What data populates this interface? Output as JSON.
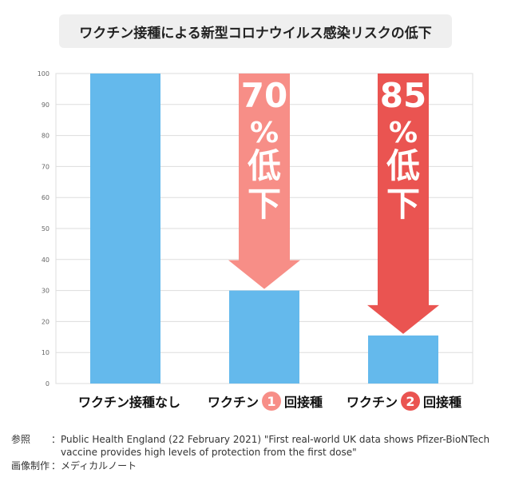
{
  "chart_data": {
    "type": "bar",
    "title": "ワクチン接種による新型コロナウイルス感染リスクの低下",
    "categories": [
      "ワクチン接種なし",
      "ワクチン1回接種",
      "ワクチン2回接種"
    ],
    "category_parts": [
      {
        "pre": "ワクチン接種なし",
        "num": "",
        "post": ""
      },
      {
        "pre": "ワクチン",
        "num": "1",
        "post": "回接種"
      },
      {
        "pre": "ワクチン",
        "num": "2",
        "post": "回接種"
      }
    ],
    "values": [
      100,
      30,
      15.5
    ],
    "ylim": [
      0,
      100
    ],
    "yticks": [
      0,
      10,
      20,
      30,
      40,
      50,
      60,
      70,
      80,
      90,
      100
    ],
    "grid": true,
    "annotations": [
      {
        "category_index": 1,
        "lines": [
          "70",
          "%",
          "低",
          "下"
        ],
        "from": 100,
        "to": 30,
        "color": "#f78e87"
      },
      {
        "category_index": 2,
        "lines": [
          "85",
          "%",
          "低",
          "下"
        ],
        "from": 100,
        "to": 15.5,
        "color": "#ea5451"
      }
    ]
  },
  "colors": {
    "bar": "#64b9ec",
    "circle_1": "#f78e87",
    "circle_2": "#ea5451",
    "grid": "#dddddd",
    "title_bg": "#efefef"
  },
  "references": {
    "source_key": "参照",
    "source_colon": "：",
    "source_line1": "Public Health England (22 February 2021) \"First real-world UK data shows Pfizer-BioNTech",
    "source_line2": "vaccine provides high levels of protection from the first dose\"",
    "credit_key": "画像制作",
    "credit_colon": "：",
    "credit": "メディカルノート"
  }
}
